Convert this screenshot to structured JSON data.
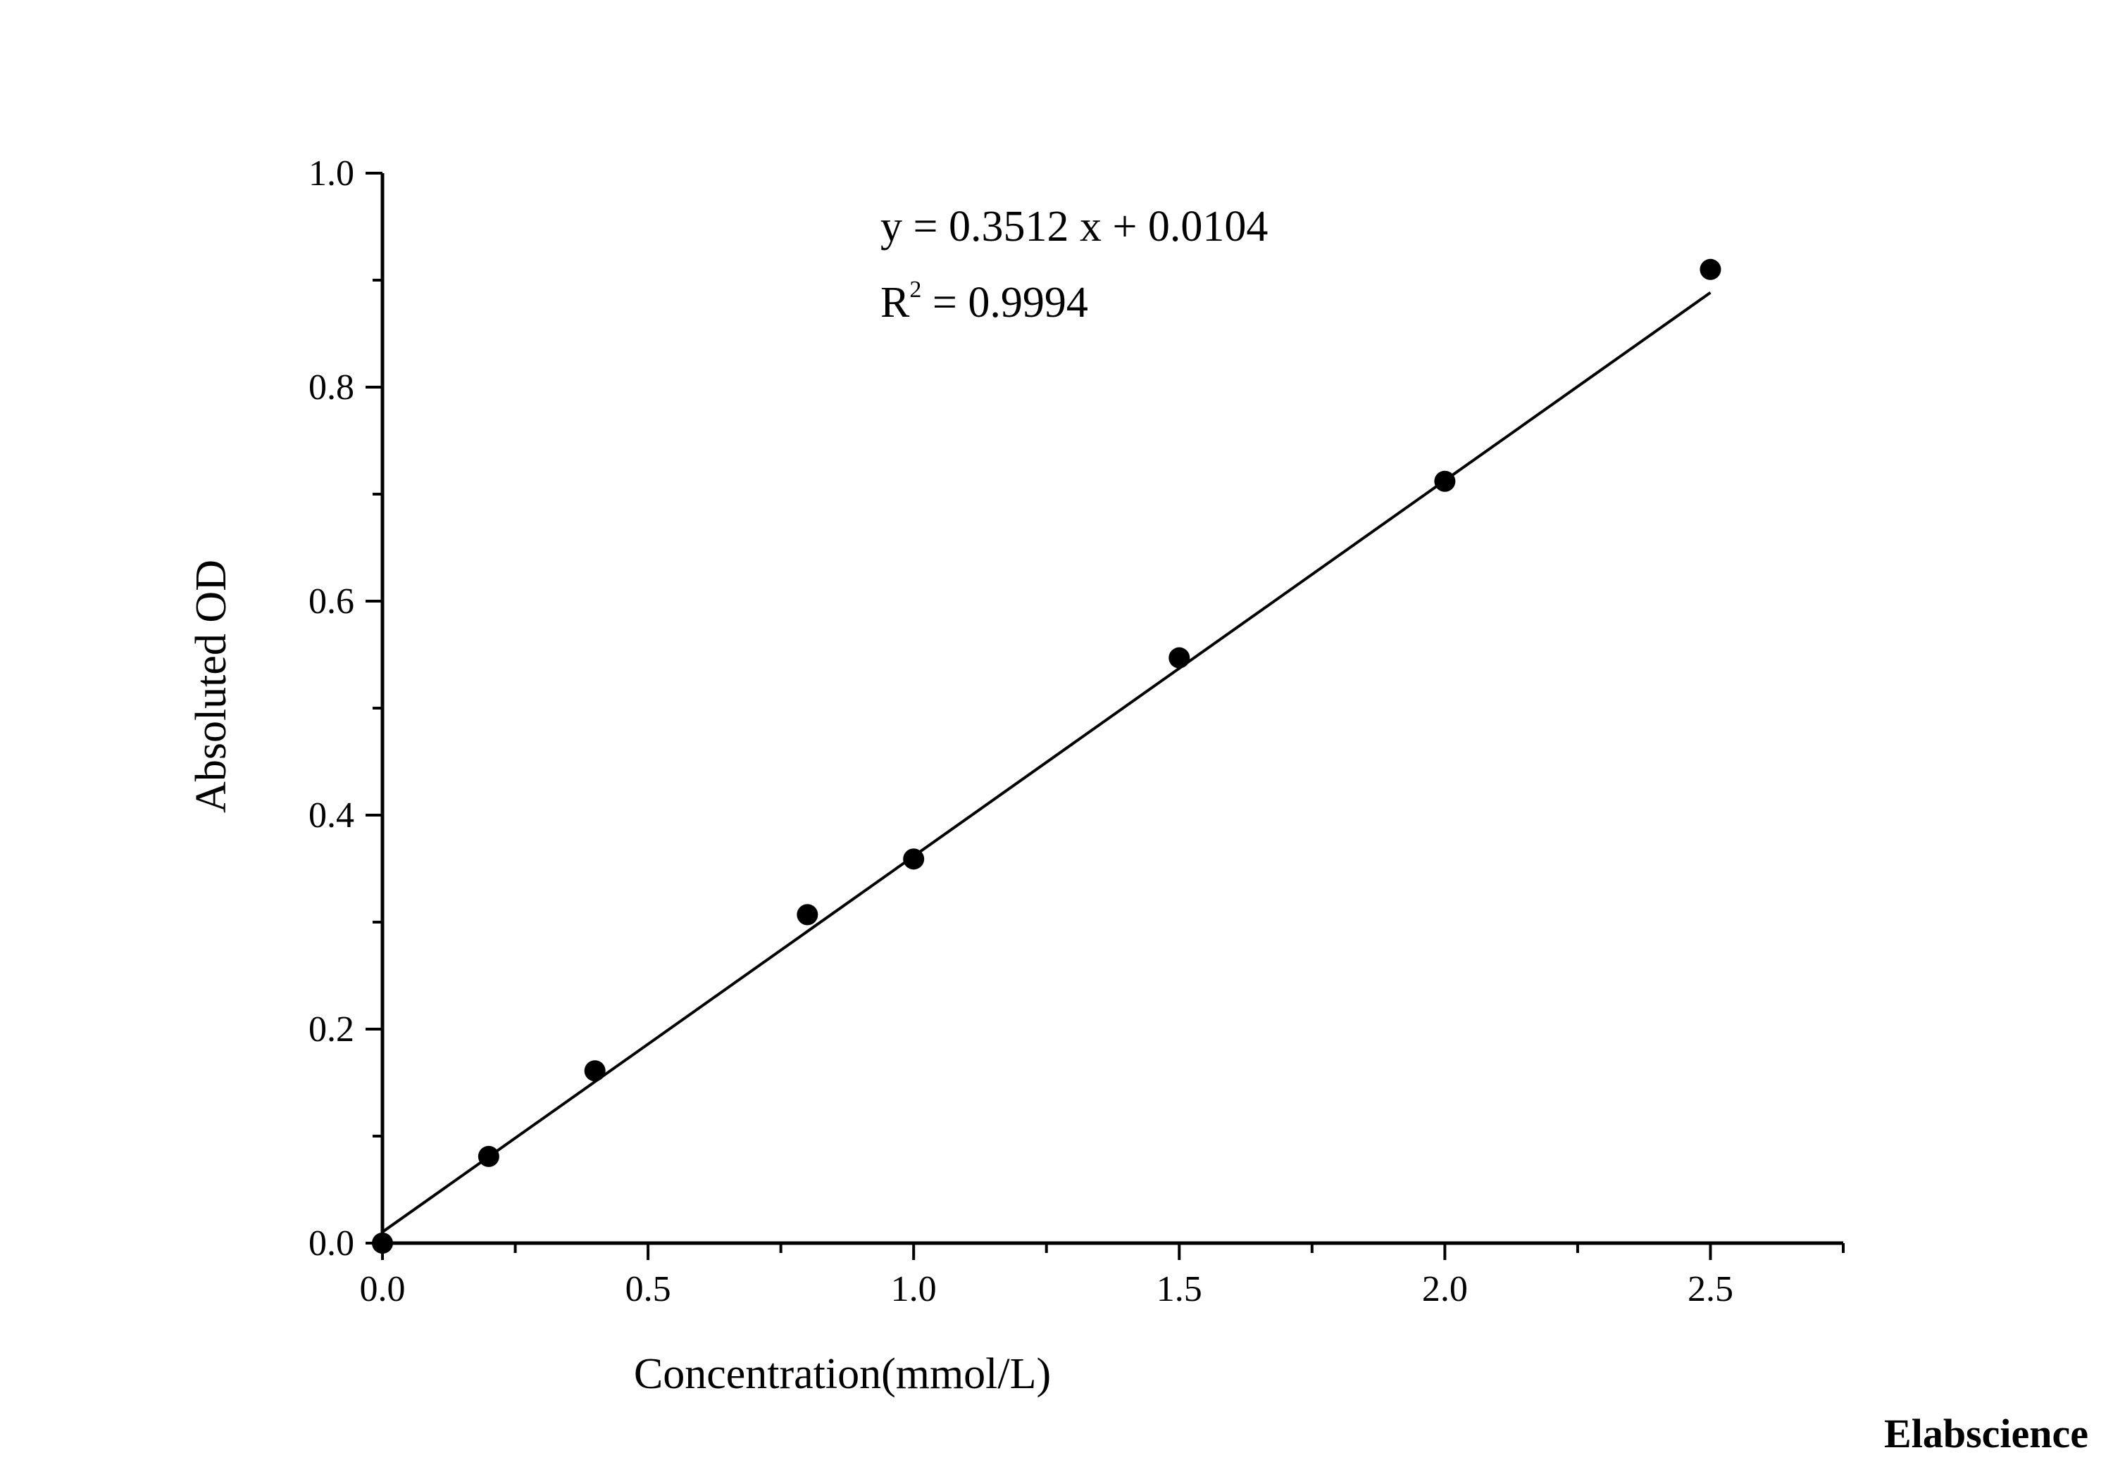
{
  "chart_data": {
    "type": "scatter",
    "xlabel": "Concentration(mmol/L)",
    "ylabel": "Absoluted OD",
    "xlim": [
      0,
      2.75
    ],
    "ylim": [
      0,
      1.0
    ],
    "x_ticks": [
      "0.0",
      "0.5",
      "1.0",
      "1.5",
      "2.0",
      "2.5"
    ],
    "y_ticks": [
      "0.0",
      "0.2",
      "0.4",
      "0.6",
      "0.8",
      "1.0"
    ],
    "grid": false,
    "series": [
      {
        "x": [
          0,
          0.2,
          0.4,
          0.8,
          1.0,
          1.5,
          2.0,
          2.5
        ],
        "y": [
          0.0,
          0.081,
          0.161,
          0.307,
          0.359,
          0.547,
          0.712,
          0.91
        ]
      }
    ],
    "trendline": {
      "slope": 0.3512,
      "intercept": 0.0104,
      "x_range": [
        0,
        2.5
      ]
    },
    "annotations": {
      "equation": "y = 0.3512 x + 0.0104",
      "r2_prefix": "R",
      "r2_sup": "2",
      "r2_value": " = 0.9994"
    },
    "watermark": "Elabscience"
  }
}
